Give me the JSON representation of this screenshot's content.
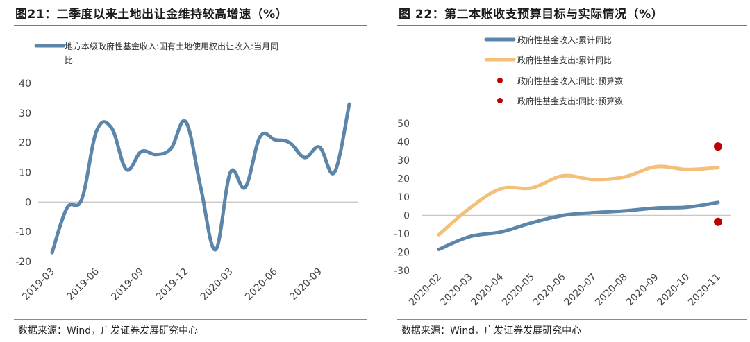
{
  "source_text": "数据来源：Wind，广发证券发展研究中心",
  "colors": {
    "blue": "#5b85a9",
    "orange": "#f2c078",
    "red": "#c00000",
    "axis": "#c8c8c8"
  },
  "chart_data": [
    {
      "type": "line",
      "title": "图21：二季度以来土地出让金维持较高增速（%）",
      "legend": [
        "地方本级政府性基金收入:国有土地使用权出让收入:当月同",
        "比"
      ],
      "x_tick_labels": [
        "2019-03",
        "2019-06",
        "2019-09",
        "2019-12",
        "2020-03",
        "2020-06",
        "2020-09"
      ],
      "ylim": [
        -20,
        40
      ],
      "y_ticks": [
        -20,
        -10,
        0,
        10,
        20,
        30,
        40
      ],
      "series": [
        {
          "name": "地方本级政府性基金收入:国有土地使用权出让收入:当月同比",
          "x": [
            0,
            1,
            2,
            3,
            4,
            5,
            6,
            7,
            8,
            9,
            10,
            11,
            12,
            13,
            14,
            15,
            16,
            17,
            18,
            19,
            20
          ],
          "values": [
            -17,
            -2,
            1,
            24,
            25,
            11,
            17,
            16,
            18,
            27,
            5,
            -16,
            10,
            5,
            22,
            21,
            20,
            15,
            18.5,
            10,
            33
          ]
        }
      ]
    },
    {
      "type": "line",
      "title": "图 22：第二本账收支预算目标与实际情况（%）",
      "categories": [
        "2020-02",
        "2020-03",
        "2020-04",
        "2020-05",
        "2020-06",
        "2020-07",
        "2020-08",
        "2020-09",
        "2020-10",
        "2020-11"
      ],
      "ylim": [
        -30,
        50
      ],
      "y_ticks": [
        -30,
        -20,
        -10,
        0,
        10,
        20,
        30,
        40,
        50
      ],
      "series": [
        {
          "name": "政府性基金收入:累计同比",
          "type": "line",
          "values": [
            -18.5,
            -11.5,
            -9,
            -4,
            0,
            1.5,
            2.5,
            4,
            4.5,
            7
          ]
        },
        {
          "name": "政府性基金支出:累计同比",
          "type": "line",
          "values": [
            -10.5,
            4,
            14.5,
            15,
            21.5,
            19.5,
            21,
            26.5,
            25,
            26
          ]
        },
        {
          "name": "政府性基金收入:同比:预算数",
          "type": "scatter",
          "points": [
            {
              "x": "2020-11",
              "y": -3.5
            }
          ]
        },
        {
          "name": "政府性基金支出:同比:预算数",
          "type": "scatter",
          "points": [
            {
              "x": "2020-11",
              "y": 37.5
            }
          ]
        }
      ]
    }
  ]
}
